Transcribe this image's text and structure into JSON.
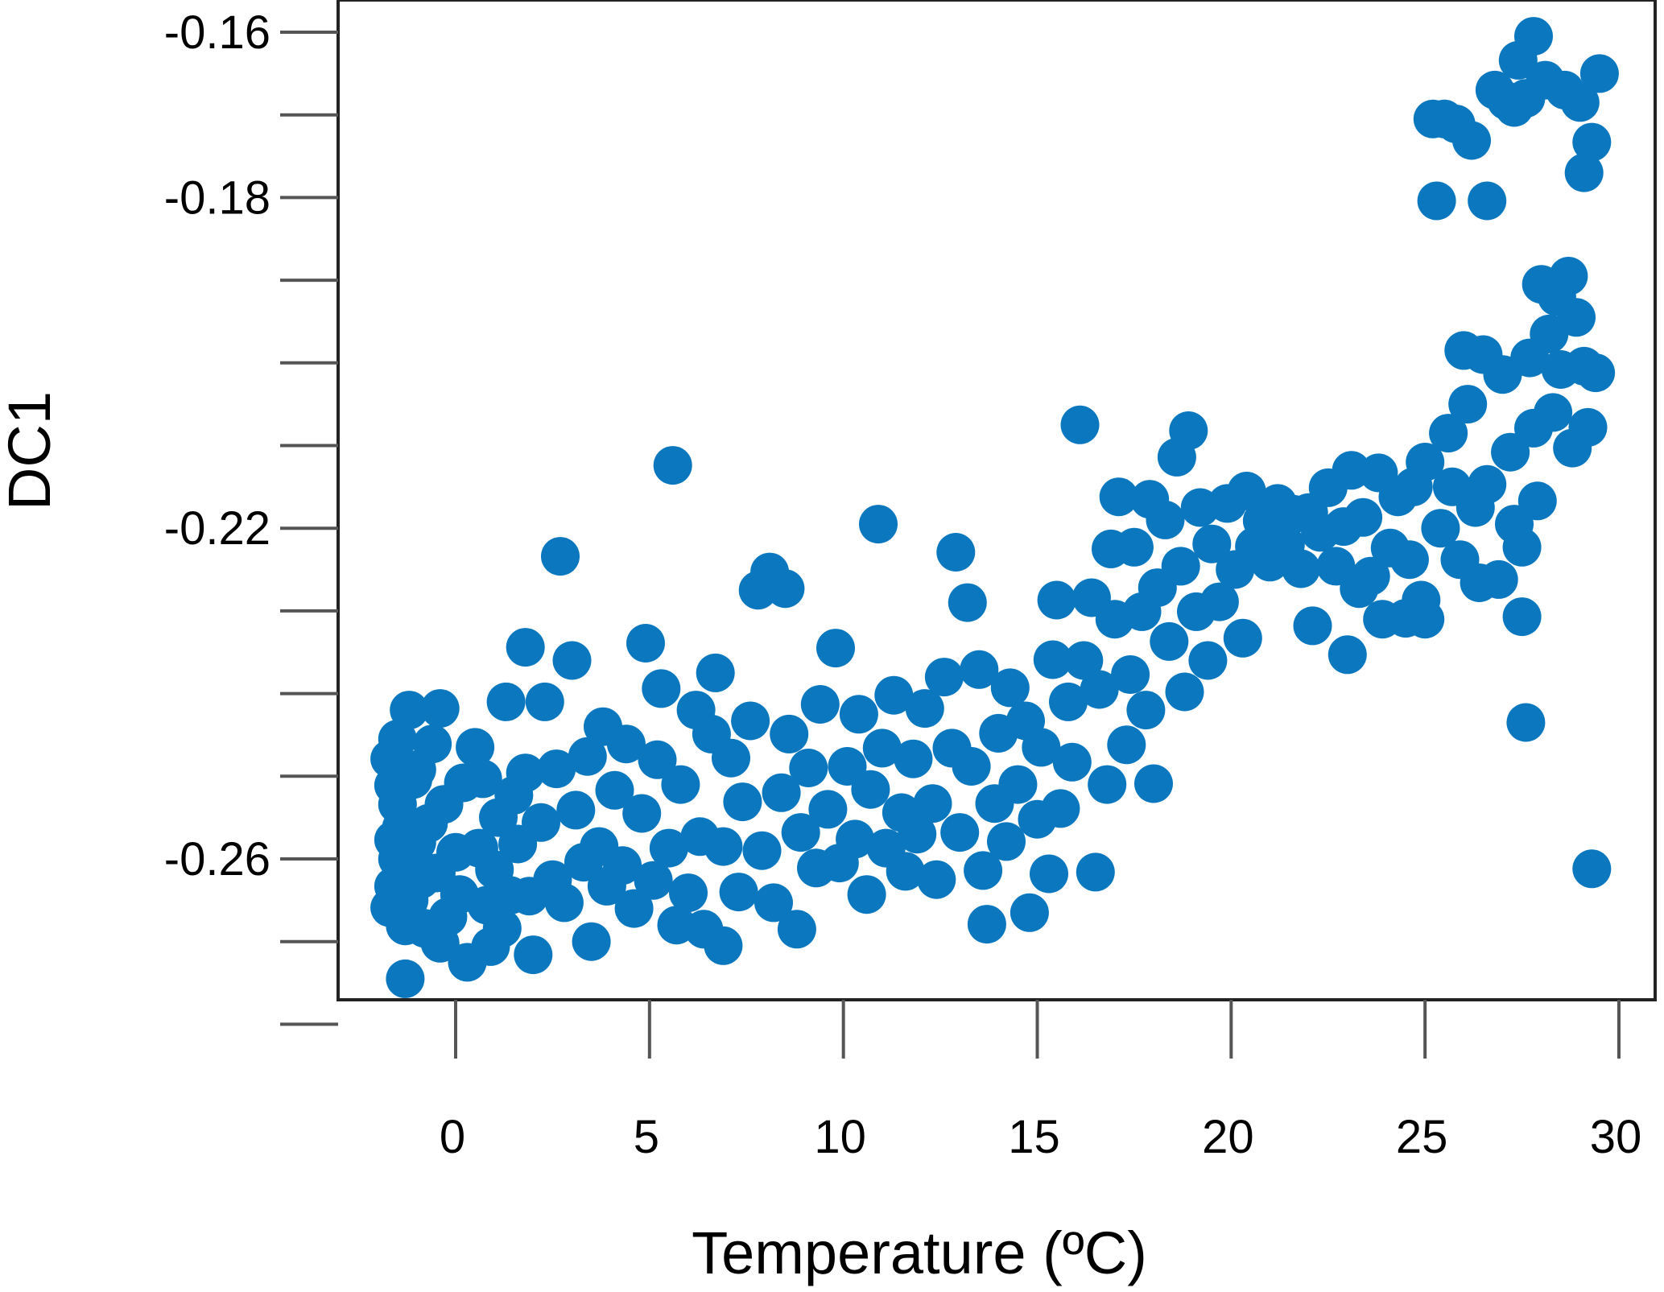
{
  "chart_data": {
    "type": "scatter",
    "title": "",
    "xlabel": "Temperature (ºC)",
    "ylabel": "DC1",
    "xlim": [
      -2.0,
      30.0
    ],
    "ylim": [
      -0.2799,
      -0.16
    ],
    "x_ticks": [
      0,
      5,
      10,
      15,
      20,
      25,
      30
    ],
    "x_tick_labels": [
      "0",
      "5",
      "10",
      "15",
      "20",
      "25",
      "30"
    ],
    "y_ticks": [
      -0.16,
      -0.17,
      -0.18,
      -0.19,
      -0.2,
      -0.21,
      -0.22,
      -0.23,
      -0.24,
      -0.25,
      -0.26,
      -0.27,
      -0.28
    ],
    "y_tick_labels": [
      "-0.16",
      "",
      "-0.18",
      "",
      "",
      "",
      "-0.22",
      "",
      "",
      "",
      "-0.26",
      "",
      ""
    ],
    "grid": false,
    "legend": null,
    "marker_color": "#0a77bf",
    "series": [
      {
        "points": [
          [
            -1.7,
            -0.2479
          ],
          [
            -1.5,
            -0.2534
          ],
          [
            -1.6,
            -0.2577
          ],
          [
            -1.4,
            -0.2618
          ],
          [
            -1.7,
            -0.2659
          ],
          [
            -1.3,
            -0.2681
          ],
          [
            -1.5,
            -0.2455
          ],
          [
            -1.2,
            -0.242
          ],
          [
            -1.4,
            -0.2562
          ],
          [
            -1.6,
            -0.2633
          ],
          [
            -1.3,
            -0.2745
          ],
          [
            -1.1,
            -0.2504
          ],
          [
            -1.5,
            -0.26
          ],
          [
            -1.6,
            -0.2511
          ],
          [
            -1.2,
            -0.265
          ],
          [
            -1.0,
            -0.258
          ],
          [
            -0.9,
            -0.2625
          ],
          [
            -1.0,
            -0.2492
          ],
          [
            -0.8,
            -0.2684
          ],
          [
            -0.7,
            -0.2557
          ],
          [
            -0.5,
            -0.2617
          ],
          [
            -0.4,
            -0.2702
          ],
          [
            -0.6,
            -0.2461
          ],
          [
            -0.3,
            -0.2534
          ],
          [
            -0.2,
            -0.267
          ],
          [
            0.0,
            -0.2592
          ],
          [
            0.1,
            -0.2643
          ],
          [
            0.2,
            -0.2508
          ],
          [
            -0.4,
            -0.2418
          ],
          [
            0.3,
            -0.2725
          ],
          [
            0.5,
            -0.2465
          ],
          [
            0.6,
            -0.2587
          ],
          [
            0.8,
            -0.2656
          ],
          [
            0.7,
            -0.2503
          ],
          [
            1.0,
            -0.2613
          ],
          [
            0.9,
            -0.2706
          ],
          [
            1.1,
            -0.255
          ],
          [
            1.3,
            -0.241
          ],
          [
            1.2,
            -0.2684
          ],
          [
            1.5,
            -0.2523
          ],
          [
            1.4,
            -0.2644
          ],
          [
            1.6,
            -0.2582
          ],
          [
            1.8,
            -0.2496
          ],
          [
            1.9,
            -0.2645
          ],
          [
            1.8,
            -0.2344
          ],
          [
            2.0,
            -0.2716
          ],
          [
            2.2,
            -0.2556
          ],
          [
            2.3,
            -0.241
          ],
          [
            2.5,
            -0.2625
          ],
          [
            2.6,
            -0.2491
          ],
          [
            2.7,
            -0.2234
          ],
          [
            2.8,
            -0.2653
          ],
          [
            3.0,
            -0.236
          ],
          [
            3.1,
            -0.2541
          ],
          [
            3.3,
            -0.2604
          ],
          [
            3.4,
            -0.2476
          ],
          [
            3.5,
            -0.27
          ],
          [
            3.7,
            -0.2585
          ],
          [
            3.8,
            -0.244
          ],
          [
            3.9,
            -0.2633
          ],
          [
            4.1,
            -0.2517
          ],
          [
            4.3,
            -0.2608
          ],
          [
            4.4,
            -0.2461
          ],
          [
            4.6,
            -0.266
          ],
          [
            4.8,
            -0.2545
          ],
          [
            4.9,
            -0.2339
          ],
          [
            5.1,
            -0.2626
          ],
          [
            5.2,
            -0.248
          ],
          [
            5.3,
            -0.2394
          ],
          [
            5.5,
            -0.2587
          ],
          [
            5.6,
            -0.2124
          ],
          [
            5.7,
            -0.268
          ],
          [
            5.8,
            -0.251
          ],
          [
            6.0,
            -0.2641
          ],
          [
            6.2,
            -0.242
          ],
          [
            6.3,
            -0.2573
          ],
          [
            6.4,
            -0.2685
          ],
          [
            6.6,
            -0.2449
          ],
          [
            6.7,
            -0.2375
          ],
          [
            6.9,
            -0.2705
          ],
          [
            6.9,
            -0.2585
          ],
          [
            7.1,
            -0.2478
          ],
          [
            7.3,
            -0.264
          ],
          [
            7.4,
            -0.2531
          ],
          [
            7.6,
            -0.2433
          ],
          [
            7.8,
            -0.2275
          ],
          [
            7.9,
            -0.259
          ],
          [
            8.1,
            -0.2253
          ],
          [
            8.2,
            -0.2653
          ],
          [
            8.4,
            -0.252
          ],
          [
            8.5,
            -0.2273
          ],
          [
            8.6,
            -0.2449
          ],
          [
            8.8,
            -0.2685
          ],
          [
            8.9,
            -0.2568
          ],
          [
            9.1,
            -0.249
          ],
          [
            9.3,
            -0.2611
          ],
          [
            9.4,
            -0.2413
          ],
          [
            9.6,
            -0.254
          ],
          [
            9.8,
            -0.2345
          ],
          [
            9.9,
            -0.2605
          ],
          [
            10.1,
            -0.2488
          ],
          [
            10.3,
            -0.2576
          ],
          [
            10.4,
            -0.2425
          ],
          [
            10.6,
            -0.2643
          ],
          [
            10.7,
            -0.2516
          ],
          [
            10.9,
            -0.2195
          ],
          [
            11.0,
            -0.2466
          ],
          [
            11.1,
            -0.2587
          ],
          [
            11.3,
            -0.2402
          ],
          [
            11.5,
            -0.2544
          ],
          [
            11.6,
            -0.2615
          ],
          [
            11.8,
            -0.2479
          ],
          [
            11.9,
            -0.257
          ],
          [
            12.1,
            -0.2418
          ],
          [
            12.3,
            -0.2533
          ],
          [
            12.4,
            -0.2625
          ],
          [
            12.6,
            -0.238
          ],
          [
            12.8,
            -0.2466
          ],
          [
            12.9,
            -0.2229
          ],
          [
            13.0,
            -0.2568
          ],
          [
            13.2,
            -0.229
          ],
          [
            13.3,
            -0.2488
          ],
          [
            13.5,
            -0.2371
          ],
          [
            13.6,
            -0.2614
          ],
          [
            13.7,
            -0.2679
          ],
          [
            13.9,
            -0.2533
          ],
          [
            14.0,
            -0.2448
          ],
          [
            14.2,
            -0.2579
          ],
          [
            14.3,
            -0.2393
          ],
          [
            14.5,
            -0.251
          ],
          [
            14.7,
            -0.2433
          ],
          [
            14.8,
            -0.2665
          ],
          [
            15.0,
            -0.2552
          ],
          [
            15.1,
            -0.2465
          ],
          [
            15.3,
            -0.2618
          ],
          [
            15.4,
            -0.2359
          ],
          [
            15.5,
            -0.2287
          ],
          [
            15.6,
            -0.2539
          ],
          [
            15.8,
            -0.241
          ],
          [
            15.9,
            -0.2483
          ],
          [
            16.1,
            -0.2075
          ],
          [
            16.2,
            -0.236
          ],
          [
            16.4,
            -0.2284
          ],
          [
            16.5,
            -0.2616
          ],
          [
            16.6,
            -0.2395
          ],
          [
            16.8,
            -0.251
          ],
          [
            16.9,
            -0.2225
          ],
          [
            17.0,
            -0.231
          ],
          [
            17.1,
            -0.2162
          ],
          [
            17.3,
            -0.2462
          ],
          [
            17.4,
            -0.2377
          ],
          [
            17.5,
            -0.2223
          ],
          [
            17.7,
            -0.2301
          ],
          [
            17.8,
            -0.242
          ],
          [
            17.9,
            -0.2165
          ],
          [
            18.0,
            -0.2509
          ],
          [
            18.1,
            -0.2272
          ],
          [
            18.3,
            -0.219
          ],
          [
            18.4,
            -0.2337
          ],
          [
            18.6,
            -0.2114
          ],
          [
            18.7,
            -0.2246
          ],
          [
            18.8,
            -0.2398
          ],
          [
            18.9,
            -0.2082
          ],
          [
            19.1,
            -0.2301
          ],
          [
            19.2,
            -0.2175
          ],
          [
            19.4,
            -0.236
          ],
          [
            19.5,
            -0.2219
          ],
          [
            19.7,
            -0.2289
          ],
          [
            19.9,
            -0.217
          ],
          [
            20.1,
            -0.225
          ],
          [
            20.3,
            -0.2333
          ],
          [
            20.4,
            -0.2155
          ],
          [
            20.6,
            -0.2222
          ],
          [
            20.8,
            -0.2191
          ],
          [
            21.0,
            -0.2241
          ],
          [
            21.2,
            -0.217
          ],
          [
            21.4,
            -0.222
          ],
          [
            21.6,
            -0.2183
          ],
          [
            21.8,
            -0.2249
          ],
          [
            22.0,
            -0.2181
          ],
          [
            22.1,
            -0.2318
          ],
          [
            22.3,
            -0.2205
          ],
          [
            22.5,
            -0.2151
          ],
          [
            22.7,
            -0.2246
          ],
          [
            22.9,
            -0.2198
          ],
          [
            23.0,
            -0.2353
          ],
          [
            23.1,
            -0.213
          ],
          [
            23.3,
            -0.2273
          ],
          [
            23.4,
            -0.2187
          ],
          [
            23.6,
            -0.2258
          ],
          [
            23.8,
            -0.2133
          ],
          [
            23.9,
            -0.231
          ],
          [
            24.1,
            -0.2224
          ],
          [
            24.3,
            -0.2162
          ],
          [
            24.5,
            -0.2309
          ],
          [
            24.6,
            -0.2238
          ],
          [
            24.7,
            -0.215
          ],
          [
            24.9,
            -0.2287
          ],
          [
            25.0,
            -0.212
          ],
          [
            25.0,
            -0.231
          ],
          [
            25.2,
            -0.1705
          ],
          [
            25.3,
            -0.1804
          ],
          [
            25.4,
            -0.22
          ],
          [
            25.5,
            -0.1705
          ],
          [
            25.6,
            -0.2085
          ],
          [
            25.7,
            -0.215
          ],
          [
            25.8,
            -0.1711
          ],
          [
            25.9,
            -0.2238
          ],
          [
            26.0,
            -0.1985
          ],
          [
            26.1,
            -0.205
          ],
          [
            26.2,
            -0.1731
          ],
          [
            26.3,
            -0.2175
          ],
          [
            26.4,
            -0.2266
          ],
          [
            26.5,
            -0.199
          ],
          [
            26.6,
            -0.1804
          ],
          [
            26.6,
            -0.2147
          ],
          [
            26.8,
            -0.167
          ],
          [
            26.9,
            -0.2262
          ],
          [
            27.0,
            -0.2014
          ],
          [
            27.1,
            -0.1683
          ],
          [
            27.2,
            -0.2108
          ],
          [
            27.3,
            -0.1691
          ],
          [
            27.3,
            -0.2195
          ],
          [
            27.4,
            -0.1634
          ],
          [
            27.5,
            -0.2223
          ],
          [
            27.5,
            -0.2307
          ],
          [
            27.6,
            -0.2435
          ],
          [
            27.6,
            -0.168
          ],
          [
            27.7,
            -0.1994
          ],
          [
            27.8,
            -0.1605
          ],
          [
            27.8,
            -0.2079
          ],
          [
            27.9,
            -0.2167
          ],
          [
            28.0,
            -0.1905
          ],
          [
            28.1,
            -0.1658
          ],
          [
            28.2,
            -0.1965
          ],
          [
            28.3,
            -0.206
          ],
          [
            28.4,
            -0.192
          ],
          [
            28.5,
            -0.2008
          ],
          [
            28.6,
            -0.167
          ],
          [
            28.7,
            -0.1895
          ],
          [
            28.8,
            -0.2103
          ],
          [
            28.9,
            -0.1945
          ],
          [
            29.0,
            -0.1685
          ],
          [
            29.1,
            -0.2004
          ],
          [
            29.1,
            -0.177
          ],
          [
            29.2,
            -0.2078
          ],
          [
            29.3,
            -0.1733
          ],
          [
            29.3,
            -0.2612
          ],
          [
            29.4,
            -0.2012
          ],
          [
            29.5,
            -0.165
          ]
        ]
      }
    ]
  }
}
